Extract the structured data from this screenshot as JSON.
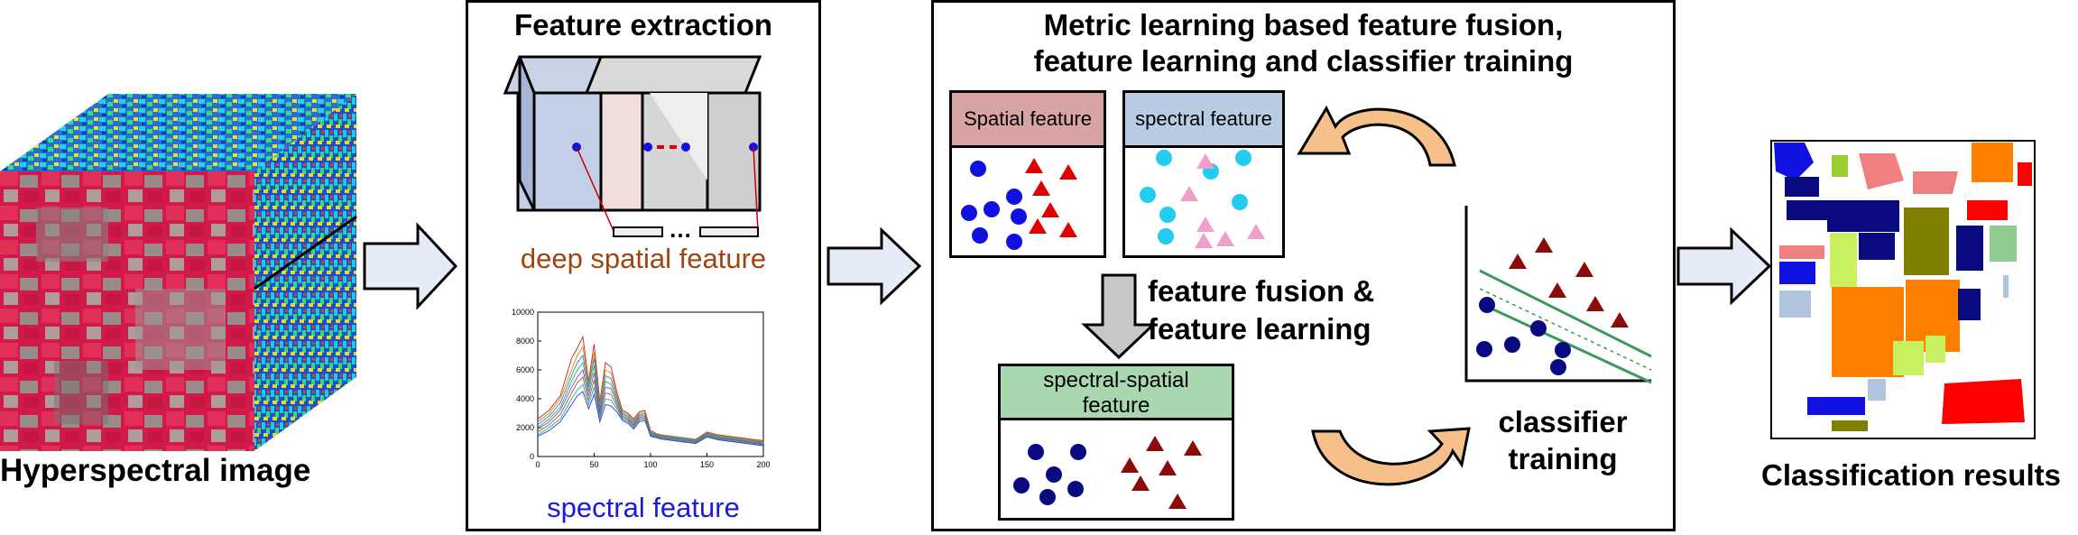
{
  "left": {
    "label": "Hyperspectral image"
  },
  "extraction": {
    "title": "Feature extraction",
    "dots": "…",
    "deep_label": "deep spatial feature",
    "spectral_label": "spectral feature",
    "colors": {
      "deep": "#a0430f",
      "spectral": "#1a1adb"
    }
  },
  "fusion": {
    "title_line1": "Metric learning based feature fusion,",
    "title_line2": "feature learning and classifier training",
    "spatial_header": "Spatial feature",
    "spectral_header": "spectral feature",
    "fusion_label_line1": "feature fusion &",
    "fusion_label_line2": "feature learning",
    "ss_header_line1": "spectral-spatial",
    "ss_header_line2": "feature",
    "classifier_line1": "classifier",
    "classifier_line2": "training",
    "colors": {
      "spatial_header": "#d8a3a3",
      "spectral_header": "#b8cce4",
      "ss_header": "#a9d8b0",
      "blue": "#1010e0",
      "red": "#e00000",
      "cyan": "#22ccee",
      "pink": "#f0a0c8",
      "navy": "#0a0a80",
      "maroon": "#8b0a0a",
      "green": "#3a9a5a",
      "tan": "#f5c08a"
    }
  },
  "right": {
    "label": "Classification results"
  },
  "chart_data": {
    "type": "line",
    "title": "",
    "xlabel": "",
    "ylabel": "",
    "xlim": [
      0,
      200
    ],
    "ylim": [
      0,
      10000
    ],
    "xticks": [
      "0",
      "50",
      "100",
      "150",
      "200"
    ],
    "yticks": [
      "0",
      "2000",
      "4000",
      "6000",
      "8000",
      "10000"
    ],
    "x": [
      0,
      10,
      20,
      30,
      35,
      40,
      45,
      50,
      55,
      60,
      65,
      70,
      75,
      80,
      85,
      90,
      95,
      100,
      105,
      110,
      120,
      130,
      140,
      150,
      160,
      170,
      180,
      190,
      200
    ],
    "series": [
      {
        "values": [
          2600,
          3200,
          4200,
          6800,
          7500,
          8300,
          5200,
          7800,
          3800,
          6500,
          6200,
          4500,
          3200,
          3000,
          2600,
          3100,
          3200,
          1800,
          1600,
          1500,
          1400,
          1300,
          1200,
          1700,
          1500,
          1400,
          1300,
          1200,
          1100
        ],
        "color": "#cc2222"
      },
      {
        "values": [
          2400,
          3000,
          4000,
          6000,
          7000,
          7600,
          5000,
          7200,
          3600,
          6000,
          5800,
          4300,
          3100,
          2900,
          2500,
          3000,
          3100,
          1700,
          1600,
          1500,
          1400,
          1300,
          1200,
          1650,
          1450,
          1350,
          1250,
          1150,
          1050
        ],
        "color": "#dd8800"
      },
      {
        "values": [
          2200,
          2800,
          3700,
          5600,
          6500,
          7000,
          4800,
          6800,
          3400,
          5600,
          5400,
          4100,
          3000,
          2800,
          2400,
          2900,
          3000,
          1650,
          1550,
          1450,
          1350,
          1250,
          1150,
          1600,
          1400,
          1300,
          1200,
          1100,
          1000
        ],
        "color": "#2288cc"
      },
      {
        "values": [
          2000,
          2600,
          3400,
          5200,
          6000,
          6500,
          4500,
          6300,
          3200,
          5200,
          5000,
          3900,
          2900,
          2700,
          2300,
          2800,
          2900,
          1600,
          1500,
          1400,
          1300,
          1200,
          1100,
          1550,
          1350,
          1250,
          1150,
          1050,
          950
        ],
        "color": "#33aa55"
      },
      {
        "values": [
          1900,
          2400,
          3200,
          4800,
          5500,
          6000,
          4200,
          5800,
          3000,
          4800,
          4700,
          3700,
          2800,
          2600,
          2200,
          2700,
          2800,
          1550,
          1450,
          1350,
          1250,
          1150,
          1050,
          1500,
          1300,
          1200,
          1100,
          1000,
          900
        ],
        "color": "#9944cc"
      },
      {
        "values": [
          1700,
          2200,
          2900,
          4400,
          5100,
          5500,
          3900,
          5300,
          2800,
          4400,
          4300,
          3500,
          2700,
          2500,
          2100,
          2600,
          2700,
          1500,
          1400,
          1300,
          1200,
          1100,
          1000,
          1450,
          1250,
          1150,
          1050,
          950,
          850
        ],
        "color": "#886633"
      },
      {
        "values": [
          1500,
          2000,
          2600,
          4000,
          4600,
          5000,
          3600,
          4800,
          2600,
          4000,
          3900,
          3300,
          2600,
          2400,
          2000,
          2500,
          2600,
          1450,
          1350,
          1250,
          1150,
          1050,
          950,
          1400,
          1200,
          1100,
          1000,
          900,
          800
        ],
        "color": "#22aaaa"
      },
      {
        "values": [
          1400,
          1800,
          2400,
          3600,
          4200,
          4500,
          3300,
          4300,
          2400,
          3600,
          3500,
          3100,
          2500,
          2300,
          1900,
          2400,
          2500,
          1400,
          1300,
          1200,
          1100,
          1000,
          900,
          1350,
          1150,
          1050,
          950,
          850,
          750
        ],
        "color": "#3333dd"
      }
    ]
  }
}
